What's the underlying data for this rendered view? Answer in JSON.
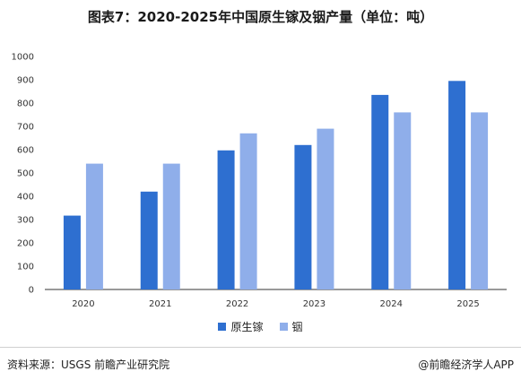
{
  "title": "图表7：2020-2025年中国原生镓及铟产量（单位：吨）",
  "source": "资料来源：USGS   前瞻产业研究院",
  "credit": "@前瞻经济学人APP",
  "colors": {
    "gallium": "#2E6FD0",
    "indium": "#8FAEEA",
    "axis": "#333333",
    "background": "#ffffff"
  },
  "chart_data": {
    "type": "bar",
    "categories": [
      "2020",
      "2021",
      "2022",
      "2023",
      "2024",
      "2025"
    ],
    "series": [
      {
        "name": "原生镓",
        "values": [
          317,
          420,
          597,
          620,
          835,
          895
        ]
      },
      {
        "name": "铟",
        "values": [
          540,
          540,
          670,
          690,
          760,
          760
        ]
      }
    ],
    "yticks": [
      "0",
      "100",
      "200",
      "300",
      "400",
      "500",
      "600",
      "700",
      "800",
      "900",
      "1000"
    ],
    "ylim": [
      0,
      1000
    ],
    "grid": false,
    "legend": "bottom-center"
  }
}
